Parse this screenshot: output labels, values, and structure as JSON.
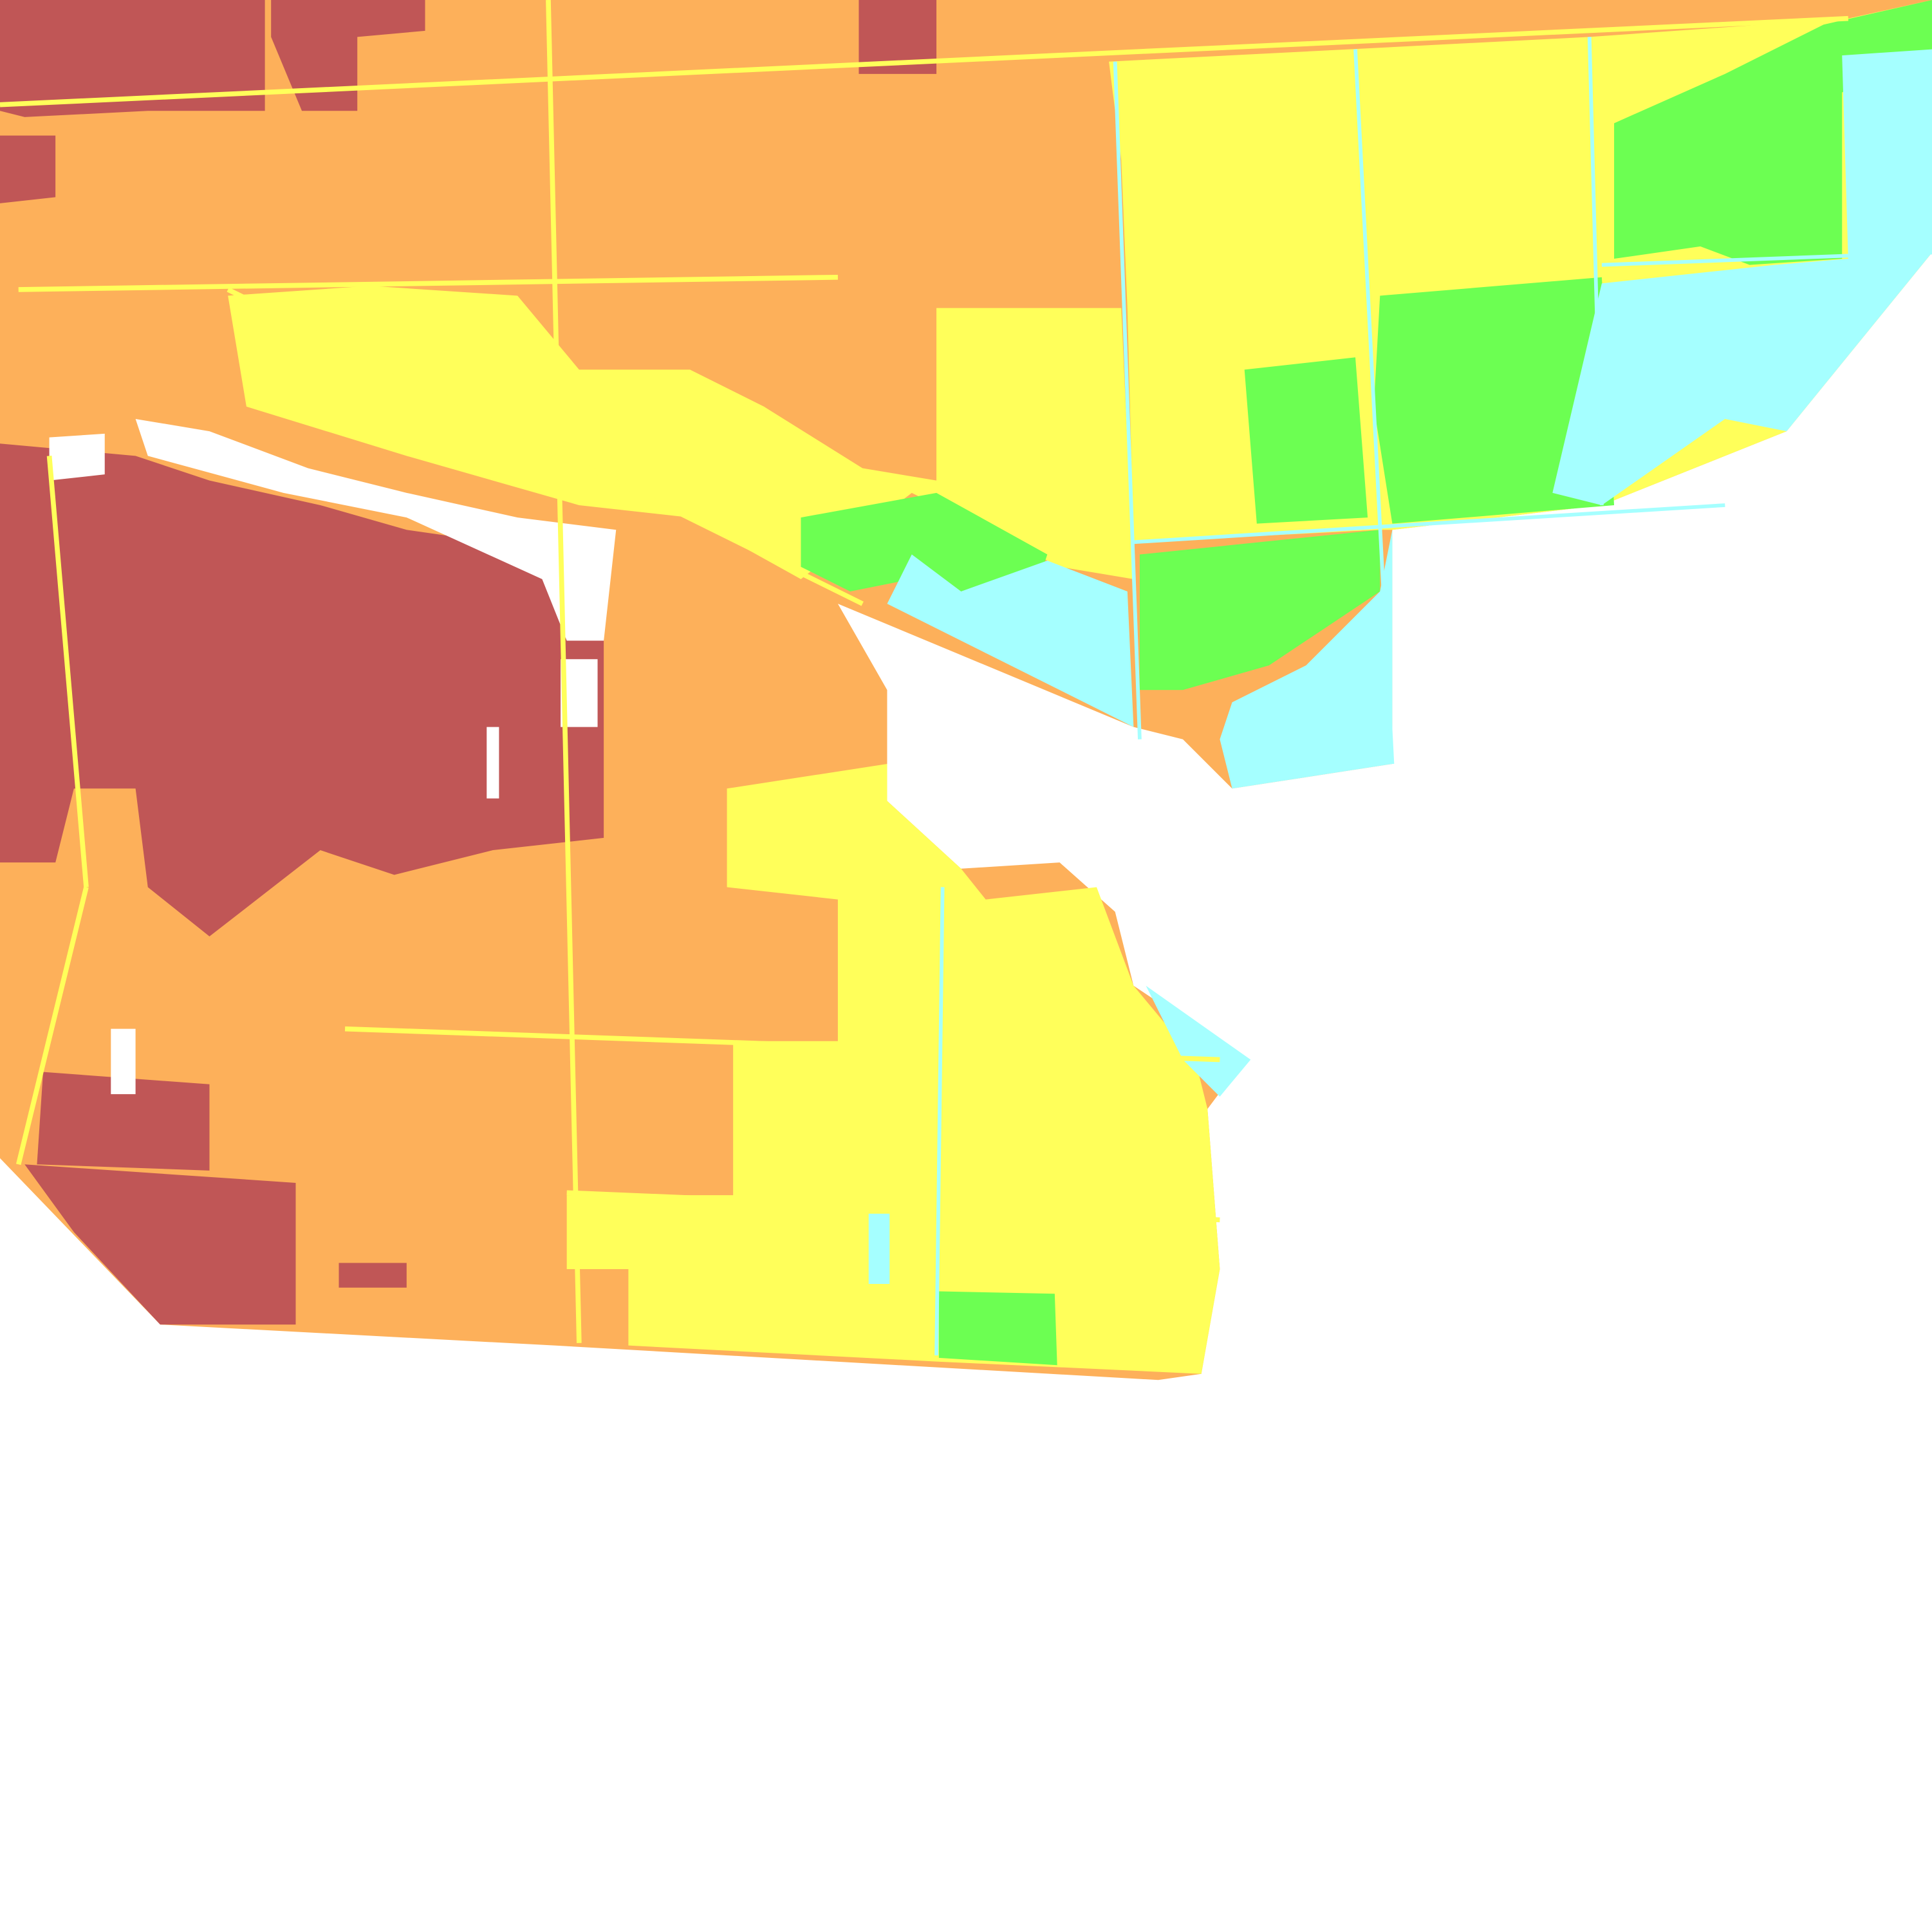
{
  "map": {
    "type": "classified land-cover raster",
    "legend_shown": false,
    "classes": [
      {
        "id": "class-1",
        "color": "#C05656"
      },
      {
        "id": "class-2",
        "color": "#FDB05A"
      },
      {
        "id": "class-3",
        "color": "#FFFF5A"
      },
      {
        "id": "class-4",
        "color": "#6CFF52"
      },
      {
        "id": "class-5",
        "color": "#A5FFFF"
      },
      {
        "id": "no-data",
        "color": "#FFFFFF"
      }
    ]
  }
}
